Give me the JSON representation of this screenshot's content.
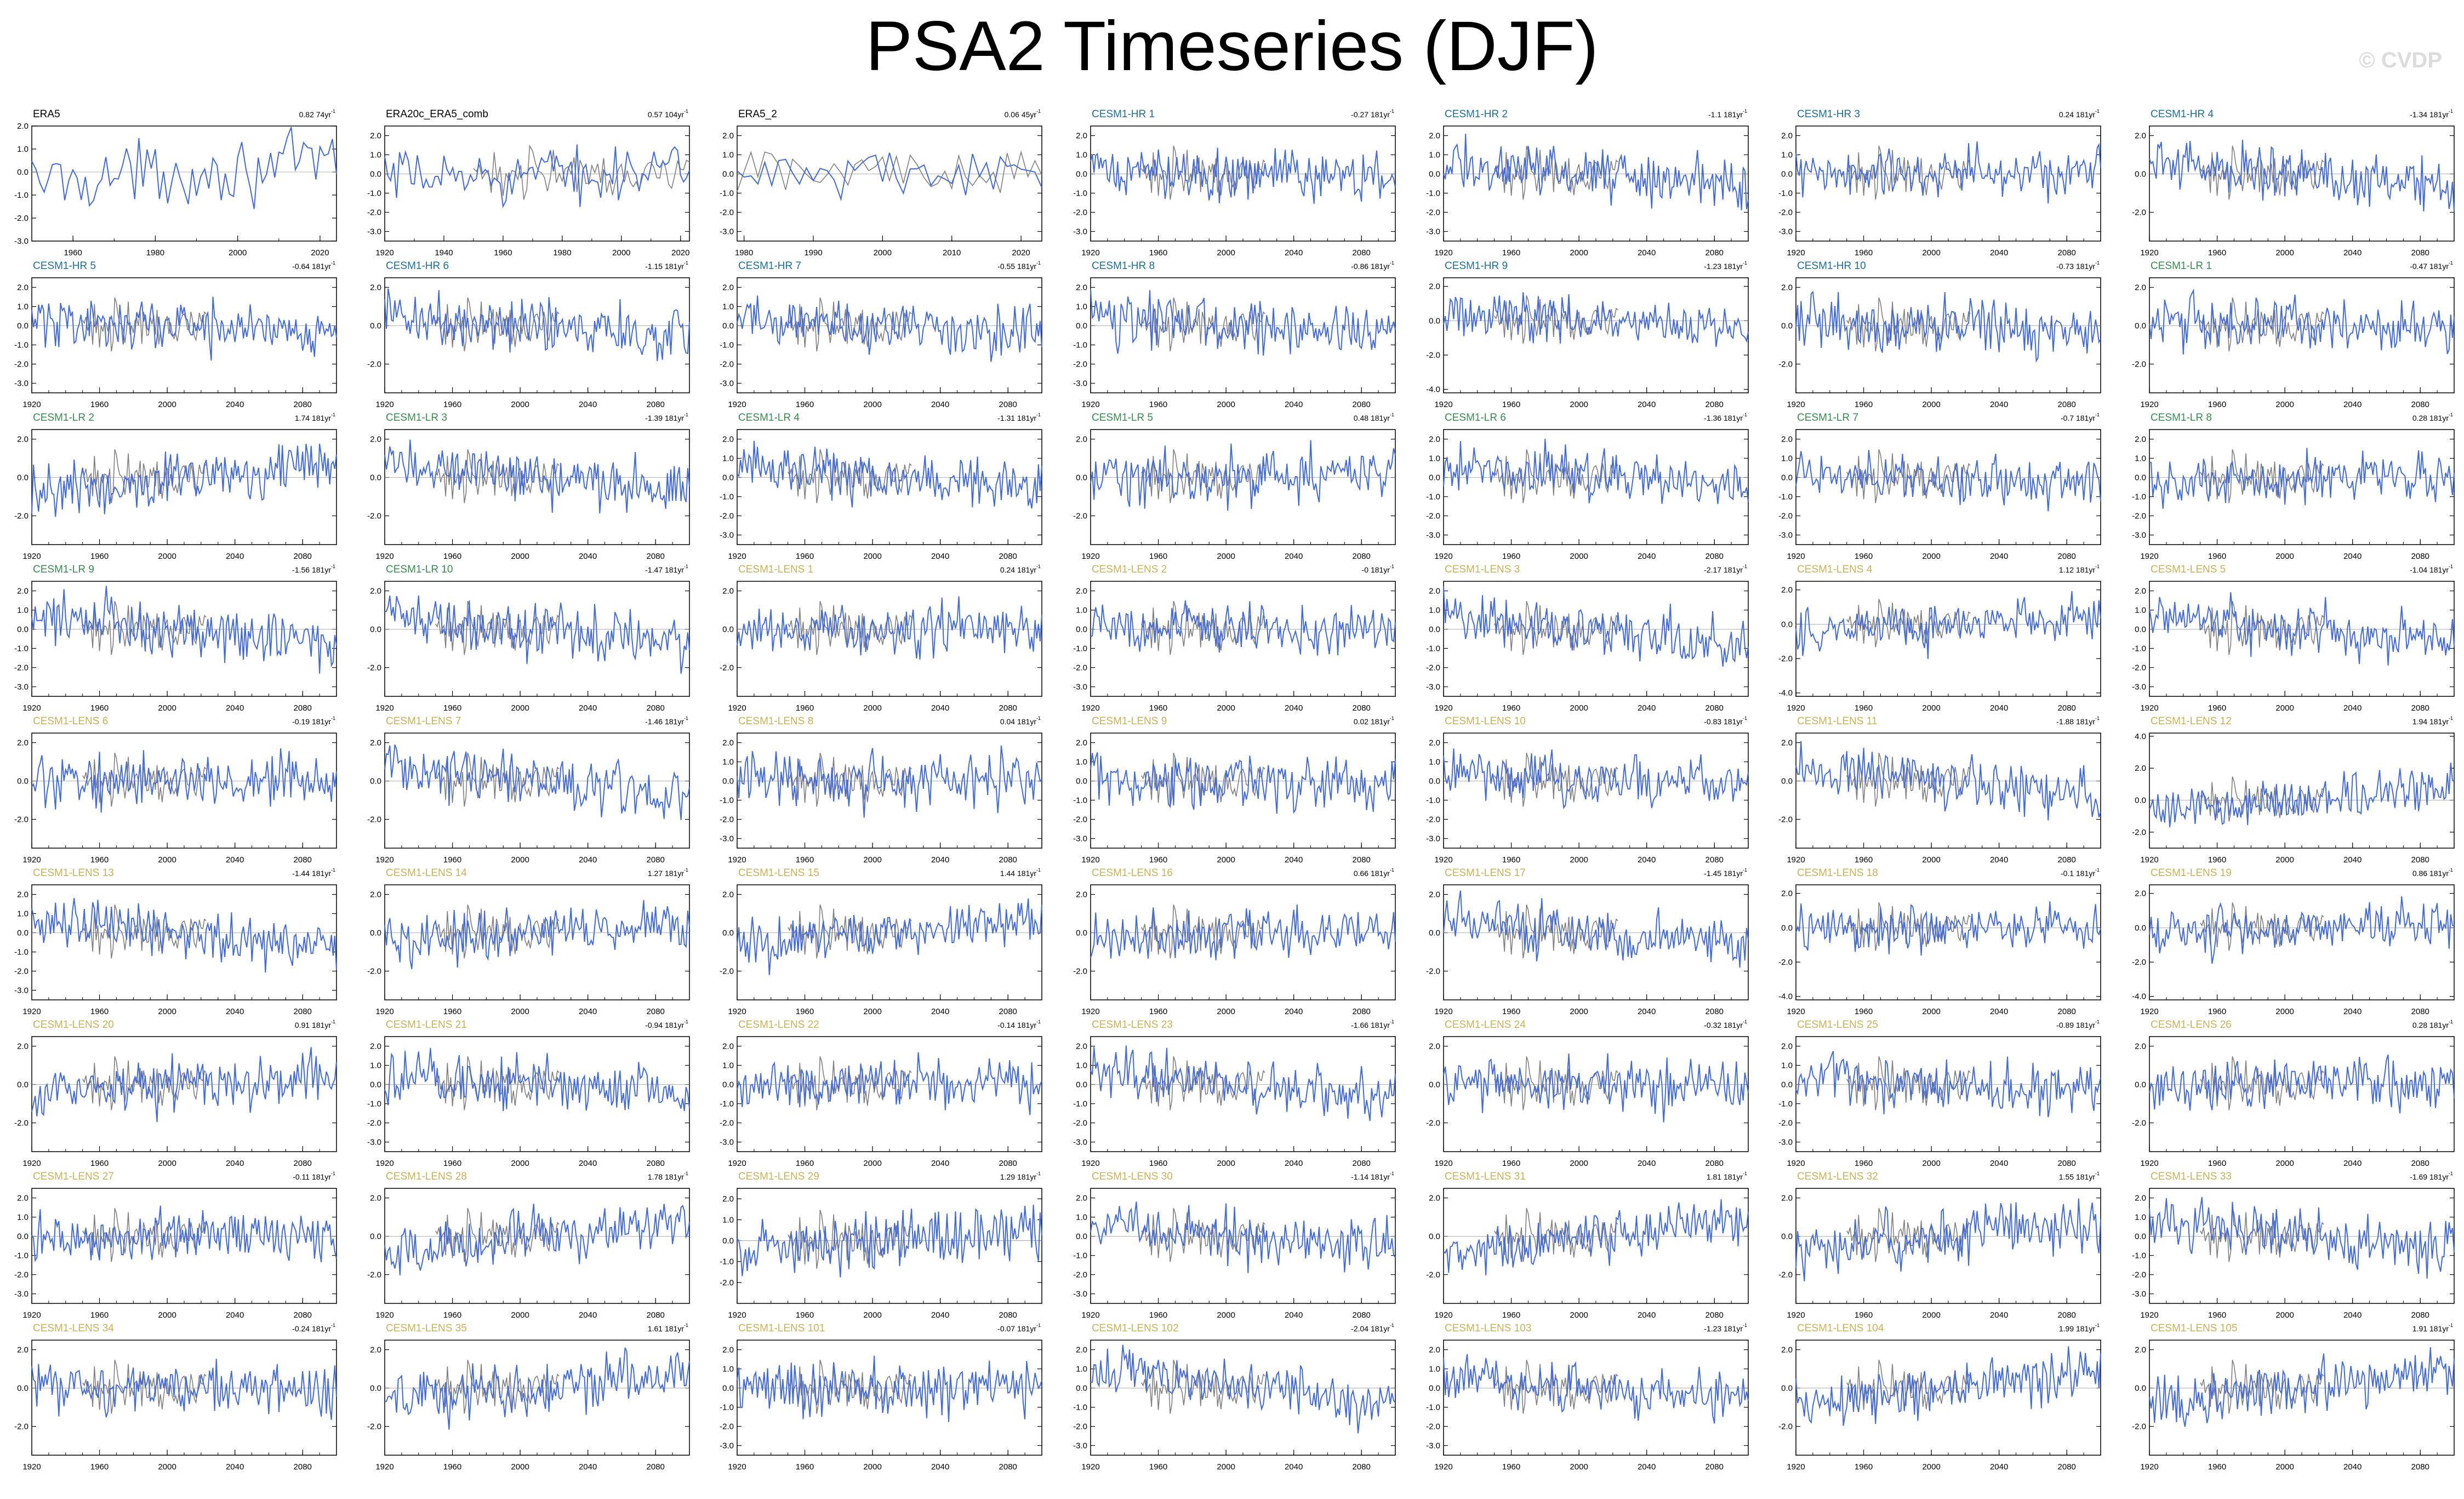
{
  "title": "PSA2 Timeseries (DJF)",
  "watermark": "© CVDP",
  "colors": {
    "obs_line": "#808080",
    "model_line": "#4169e1",
    "obs_label": "#000000",
    "hr_label": "#1f6f99",
    "lr_label": "#3a8a52",
    "lens_label": "#c8b25a"
  },
  "chart_data": {
    "type": "line",
    "panels": [
      {
        "name": "ERA5",
        "trend": "0.82",
        "unit": "74yr",
        "years": [
          1950,
          2024
        ],
        "xticks": [
          1960,
          1980,
          2000,
          2020
        ],
        "yticks": [
          "2.0",
          "1.0",
          "0.0",
          "-1.0",
          "-2.0",
          "-3.0"
        ],
        "ylim": [
          -3,
          2
        ],
        "group": "obs"
      },
      {
        "name": "ERA20c_ERA5_comb",
        "trend": "0.57",
        "unit": "104yr",
        "years": [
          1920,
          2023
        ],
        "xticks": [
          1920,
          1940,
          1960,
          1980,
          2000,
          2020
        ],
        "yticks": [
          "2.0",
          "1.0",
          "0.0",
          "-1.0",
          "-2.0",
          "-3.0"
        ],
        "ylim": [
          -3.5,
          2.5
        ],
        "group": "obs"
      },
      {
        "name": "ERA5_2",
        "trend": "0.06",
        "unit": "45yr",
        "years": [
          1979,
          2023
        ],
        "xticks": [
          1980,
          1990,
          2000,
          2010,
          2020
        ],
        "yticks": [
          "2.0",
          "1.0",
          "0.0",
          "-1.0",
          "-2.0",
          "-3.0"
        ],
        "ylim": [
          -3.5,
          2.5
        ],
        "group": "obs"
      },
      {
        "name": "CESM1-HR 1",
        "trend": "-0.27",
        "unit": "181yr",
        "group": "hr",
        "yticks": [
          "2.0",
          "1.0",
          "0.0",
          "-1.0",
          "-2.0",
          "-3.0"
        ],
        "ylim": [
          -3.5,
          2.5
        ]
      },
      {
        "name": "CESM1-HR 2",
        "trend": "-1.1",
        "unit": "181yr",
        "group": "hr",
        "yticks": [
          "2.0",
          "1.0",
          "0.0",
          "-1.0",
          "-2.0",
          "-3.0"
        ],
        "ylim": [
          -3.5,
          2.5
        ]
      },
      {
        "name": "CESM1-HR 3",
        "trend": "0.24",
        "unit": "181yr",
        "group": "hr",
        "yticks": [
          "2.0",
          "1.0",
          "0.0",
          "-1.0",
          "-2.0",
          "-3.0"
        ],
        "ylim": [
          -3.5,
          2.5
        ]
      },
      {
        "name": "CESM1-HR 4",
        "trend": "-1.34",
        "unit": "181yr",
        "group": "hr",
        "yticks": [
          "2.0",
          "0.0",
          "-2.0"
        ],
        "ylim": [
          -3.5,
          2.5
        ]
      },
      {
        "name": "CESM1-HR 5",
        "trend": "-0.64",
        "unit": "181yr",
        "group": "hr",
        "yticks": [
          "2.0",
          "1.0",
          "0.0",
          "-1.0",
          "-2.0",
          "-3.0"
        ],
        "ylim": [
          -3.5,
          2.5
        ]
      },
      {
        "name": "CESM1-HR 6",
        "trend": "-1.15",
        "unit": "181yr",
        "group": "hr",
        "yticks": [
          "2.0",
          "0.0",
          "-2.0"
        ],
        "ylim": [
          -3.5,
          2.5
        ]
      },
      {
        "name": "CESM1-HR 7",
        "trend": "-0.55",
        "unit": "181yr",
        "group": "hr",
        "yticks": [
          "2.0",
          "1.0",
          "0.0",
          "-1.0",
          "-2.0",
          "-3.0"
        ],
        "ylim": [
          -3.5,
          2.5
        ]
      },
      {
        "name": "CESM1-HR 8",
        "trend": "-0.86",
        "unit": "181yr",
        "group": "hr",
        "yticks": [
          "2.0",
          "1.0",
          "0.0",
          "-1.0",
          "-2.0",
          "-3.0"
        ],
        "ylim": [
          -3.5,
          2.5
        ]
      },
      {
        "name": "CESM1-HR 9",
        "trend": "-1.23",
        "unit": "181yr",
        "group": "hr",
        "yticks": [
          "2.0",
          "0.0",
          "-2.0",
          "-4.0"
        ],
        "ylim": [
          -4.2,
          2.5
        ]
      },
      {
        "name": "CESM1-HR 10",
        "trend": "-0.73",
        "unit": "181yr",
        "group": "hr",
        "yticks": [
          "2.0",
          "0.0",
          "-2.0"
        ],
        "ylim": [
          -3.5,
          2.5
        ]
      },
      {
        "name": "CESM1-LR 1",
        "trend": "-0.47",
        "unit": "181yr",
        "group": "lr",
        "yticks": [
          "2.0",
          "0.0",
          "-2.0"
        ],
        "ylim": [
          -3.5,
          2.5
        ]
      },
      {
        "name": "CESM1-LR 2",
        "trend": "1.74",
        "unit": "181yr",
        "group": "lr",
        "yticks": [
          "2.0",
          "0.0",
          "-2.0"
        ],
        "ylim": [
          -3.5,
          2.5
        ]
      },
      {
        "name": "CESM1-LR 3",
        "trend": "-1.39",
        "unit": "181yr",
        "group": "lr",
        "yticks": [
          "2.0",
          "0.0",
          "-2.0"
        ],
        "ylim": [
          -3.5,
          2.5
        ]
      },
      {
        "name": "CESM1-LR 4",
        "trend": "-1.31",
        "unit": "181yr",
        "group": "lr",
        "yticks": [
          "2.0",
          "1.0",
          "0.0",
          "-1.0",
          "-2.0",
          "-3.0"
        ],
        "ylim": [
          -3.5,
          2.5
        ]
      },
      {
        "name": "CESM1-LR 5",
        "trend": "0.48",
        "unit": "181yr",
        "group": "lr",
        "yticks": [
          "2.0",
          "0.0",
          "-2.0"
        ],
        "ylim": [
          -3.5,
          2.5
        ]
      },
      {
        "name": "CESM1-LR 6",
        "trend": "-1.36",
        "unit": "181yr",
        "group": "lr",
        "yticks": [
          "2.0",
          "1.0",
          "0.0",
          "-1.0",
          "-2.0",
          "-3.0"
        ],
        "ylim": [
          -3.5,
          2.5
        ]
      },
      {
        "name": "CESM1-LR 7",
        "trend": "-0.7",
        "unit": "181yr",
        "group": "lr",
        "yticks": [
          "2.0",
          "1.0",
          "0.0",
          "-1.0",
          "-2.0",
          "-3.0"
        ],
        "ylim": [
          -3.5,
          2.5
        ]
      },
      {
        "name": "CESM1-LR 8",
        "trend": "0.28",
        "unit": "181yr",
        "group": "lr",
        "yticks": [
          "2.0",
          "1.0",
          "0.0",
          "-1.0",
          "-2.0",
          "-3.0"
        ],
        "ylim": [
          -3.5,
          2.5
        ]
      },
      {
        "name": "CESM1-LR 9",
        "trend": "-1.56",
        "unit": "181yr",
        "group": "lr",
        "yticks": [
          "2.0",
          "1.0",
          "0.0",
          "-1.0",
          "-2.0",
          "-3.0"
        ],
        "ylim": [
          -3.5,
          2.5
        ]
      },
      {
        "name": "CESM1-LR 10",
        "trend": "-1.47",
        "unit": "181yr",
        "group": "lr",
        "yticks": [
          "2.0",
          "0.0",
          "-2.0"
        ],
        "ylim": [
          -3.5,
          2.5
        ]
      },
      {
        "name": "CESM1-LENS 1",
        "trend": "0.24",
        "unit": "181yr",
        "group": "lens",
        "yticks": [
          "2.0",
          "0.0",
          "-2.0"
        ],
        "ylim": [
          -3.5,
          2.5
        ]
      },
      {
        "name": "CESM1-LENS 2",
        "trend": "-0",
        "unit": "181yr",
        "group": "lens",
        "yticks": [
          "2.0",
          "1.0",
          "0.0",
          "-1.0",
          "-2.0",
          "-3.0"
        ],
        "ylim": [
          -3.5,
          2.5
        ]
      },
      {
        "name": "CESM1-LENS 3",
        "trend": "-2.17",
        "unit": "181yr",
        "group": "lens",
        "yticks": [
          "2.0",
          "1.0",
          "0.0",
          "-1.0",
          "-2.0",
          "-3.0"
        ],
        "ylim": [
          -3.5,
          2.5
        ]
      },
      {
        "name": "CESM1-LENS 4",
        "trend": "1.12",
        "unit": "181yr",
        "group": "lens",
        "yticks": [
          "2.0",
          "0.0",
          "-2.0",
          "-4.0"
        ],
        "ylim": [
          -4.2,
          2.5
        ]
      },
      {
        "name": "CESM1-LENS 5",
        "trend": "-1.04",
        "unit": "181yr",
        "group": "lens",
        "yticks": [
          "2.0",
          "1.0",
          "0.0",
          "-1.0",
          "-2.0",
          "-3.0"
        ],
        "ylim": [
          -3.5,
          2.5
        ]
      },
      {
        "name": "CESM1-LENS 6",
        "trend": "-0.19",
        "unit": "181yr",
        "group": "lens",
        "yticks": [
          "2.0",
          "0.0",
          "-2.0"
        ],
        "ylim": [
          -3.5,
          2.5
        ]
      },
      {
        "name": "CESM1-LENS 7",
        "trend": "-1.46",
        "unit": "181yr",
        "group": "lens",
        "yticks": [
          "2.0",
          "0.0",
          "-2.0"
        ],
        "ylim": [
          -3.5,
          2.5
        ]
      },
      {
        "name": "CESM1-LENS 8",
        "trend": "0.04",
        "unit": "181yr",
        "group": "lens",
        "yticks": [
          "2.0",
          "1.0",
          "0.0",
          "-1.0",
          "-2.0",
          "-3.0"
        ],
        "ylim": [
          -3.5,
          2.5
        ]
      },
      {
        "name": "CESM1-LENS 9",
        "trend": "0.02",
        "unit": "181yr",
        "group": "lens",
        "yticks": [
          "2.0",
          "1.0",
          "0.0",
          "-1.0",
          "-2.0",
          "-3.0"
        ],
        "ylim": [
          -3.5,
          2.5
        ]
      },
      {
        "name": "CESM1-LENS 10",
        "trend": "-0.83",
        "unit": "181yr",
        "group": "lens",
        "yticks": [
          "2.0",
          "1.0",
          "0.0",
          "-1.0",
          "-2.0",
          "-3.0"
        ],
        "ylim": [
          -3.5,
          2.5
        ]
      },
      {
        "name": "CESM1-LENS 11",
        "trend": "-1.88",
        "unit": "181yr",
        "group": "lens",
        "yticks": [
          "2.0",
          "0.0",
          "-2.0"
        ],
        "ylim": [
          -3.5,
          2.5
        ]
      },
      {
        "name": "CESM1-LENS 12",
        "trend": "1.94",
        "unit": "181yr",
        "group": "lens",
        "yticks": [
          "4.0",
          "2.0",
          "0.0",
          "-2.0"
        ],
        "ylim": [
          -3,
          4.2
        ]
      },
      {
        "name": "CESM1-LENS 13",
        "trend": "-1.44",
        "unit": "181yr",
        "group": "lens",
        "yticks": [
          "2.0",
          "1.0",
          "0.0",
          "-1.0",
          "-2.0",
          "-3.0"
        ],
        "ylim": [
          -3.5,
          2.5
        ]
      },
      {
        "name": "CESM1-LENS 14",
        "trend": "1.27",
        "unit": "181yr",
        "group": "lens",
        "yticks": [
          "2.0",
          "0.0",
          "-2.0"
        ],
        "ylim": [
          -3.5,
          2.5
        ]
      },
      {
        "name": "CESM1-LENS 15",
        "trend": "1.44",
        "unit": "181yr",
        "group": "lens",
        "yticks": [
          "2.0",
          "0.0",
          "-2.0"
        ],
        "ylim": [
          -3.5,
          2.5
        ]
      },
      {
        "name": "CESM1-LENS 16",
        "trend": "0.66",
        "unit": "181yr",
        "group": "lens",
        "yticks": [
          "2.0",
          "0.0",
          "-2.0"
        ],
        "ylim": [
          -3.5,
          2.5
        ]
      },
      {
        "name": "CESM1-LENS 17",
        "trend": "-1.45",
        "unit": "181yr",
        "group": "lens",
        "yticks": [
          "2.0",
          "0.0",
          "-2.0"
        ],
        "ylim": [
          -3.5,
          2.5
        ]
      },
      {
        "name": "CESM1-LENS 18",
        "trend": "-0.1",
        "unit": "181yr",
        "group": "lens",
        "yticks": [
          "2.0",
          "0.0",
          "-2.0",
          "-4.0"
        ],
        "ylim": [
          -4.2,
          2.5
        ]
      },
      {
        "name": "CESM1-LENS 19",
        "trend": "0.86",
        "unit": "181yr",
        "group": "lens",
        "yticks": [
          "2.0",
          "0.0",
          "-2.0",
          "-4.0"
        ],
        "ylim": [
          -4.2,
          2.5
        ]
      },
      {
        "name": "CESM1-LENS 20",
        "trend": "0.91",
        "unit": "181yr",
        "group": "lens",
        "yticks": [
          "2.0",
          "0.0",
          "-2.0"
        ],
        "ylim": [
          -3.5,
          2.5
        ]
      },
      {
        "name": "CESM1-LENS 21",
        "trend": "-0.94",
        "unit": "181yr",
        "group": "lens",
        "yticks": [
          "2.0",
          "1.0",
          "0.0",
          "-1.0",
          "-2.0",
          "-3.0"
        ],
        "ylim": [
          -3.5,
          2.5
        ]
      },
      {
        "name": "CESM1-LENS 22",
        "trend": "-0.14",
        "unit": "181yr",
        "group": "lens",
        "yticks": [
          "2.0",
          "1.0",
          "0.0",
          "-1.0",
          "-2.0",
          "-3.0"
        ],
        "ylim": [
          -3.5,
          2.5
        ]
      },
      {
        "name": "CESM1-LENS 23",
        "trend": "-1.66",
        "unit": "181yr",
        "group": "lens",
        "yticks": [
          "2.0",
          "1.0",
          "0.0",
          "-1.0",
          "-2.0",
          "-3.0"
        ],
        "ylim": [
          -3.5,
          2.5
        ]
      },
      {
        "name": "CESM1-LENS 24",
        "trend": "-0.32",
        "unit": "181yr",
        "group": "lens",
        "yticks": [
          "2.0",
          "0.0",
          "-2.0"
        ],
        "ylim": [
          -3.5,
          2.5
        ]
      },
      {
        "name": "CESM1-LENS 25",
        "trend": "-0.89",
        "unit": "181yr",
        "group": "lens",
        "yticks": [
          "2.0",
          "1.0",
          "0.0",
          "-1.0",
          "-2.0",
          "-3.0"
        ],
        "ylim": [
          -3.5,
          2.5
        ]
      },
      {
        "name": "CESM1-LENS 26",
        "trend": "0.28",
        "unit": "181yr",
        "group": "lens",
        "yticks": [
          "2.0",
          "0.0",
          "-2.0"
        ],
        "ylim": [
          -3.5,
          2.5
        ]
      },
      {
        "name": "CESM1-LENS 27",
        "trend": "-0.11",
        "unit": "181yr",
        "group": "lens",
        "yticks": [
          "2.0",
          "1.0",
          "0.0",
          "-1.0",
          "-2.0",
          "-3.0"
        ],
        "ylim": [
          -3.5,
          2.5
        ]
      },
      {
        "name": "CESM1-LENS 28",
        "trend": "1.78",
        "unit": "181yr",
        "group": "lens",
        "yticks": [
          "2.0",
          "0.0",
          "-2.0"
        ],
        "ylim": [
          -3.5,
          2.5
        ]
      },
      {
        "name": "CESM1-LENS 29",
        "trend": "1.29",
        "unit": "181yr",
        "group": "lens",
        "yticks": [
          "2.0",
          "1.0",
          "0.0",
          "-1.0",
          "-2.0"
        ],
        "ylim": [
          -3,
          2.5
        ]
      },
      {
        "name": "CESM1-LENS 30",
        "trend": "-1.14",
        "unit": "181yr",
        "group": "lens",
        "yticks": [
          "2.0",
          "1.0",
          "0.0",
          "-1.0",
          "-2.0",
          "-3.0"
        ],
        "ylim": [
          -3.5,
          2.5
        ]
      },
      {
        "name": "CESM1-LENS 31",
        "trend": "1.81",
        "unit": "181yr",
        "group": "lens",
        "yticks": [
          "2.0",
          "0.0",
          "-2.0"
        ],
        "ylim": [
          -3.5,
          2.5
        ]
      },
      {
        "name": "CESM1-LENS 32",
        "trend": "1.55",
        "unit": "181yr",
        "group": "lens",
        "yticks": [
          "2.0",
          "0.0",
          "-2.0"
        ],
        "ylim": [
          -3.5,
          2.5
        ]
      },
      {
        "name": "CESM1-LENS 33",
        "trend": "-1.69",
        "unit": "181yr",
        "group": "lens",
        "yticks": [
          "2.0",
          "1.0",
          "0.0",
          "-1.0",
          "-2.0",
          "-3.0"
        ],
        "ylim": [
          -3.5,
          2.5
        ]
      },
      {
        "name": "CESM1-LENS 34",
        "trend": "-0.24",
        "unit": "181yr",
        "group": "lens",
        "yticks": [
          "2.0",
          "0.0",
          "-2.0"
        ],
        "ylim": [
          -3.5,
          2.5
        ]
      },
      {
        "name": "CESM1-LENS 35",
        "trend": "1.61",
        "unit": "181yr",
        "group": "lens",
        "yticks": [
          "2.0",
          "0.0",
          "-2.0"
        ],
        "ylim": [
          -3.5,
          2.5
        ]
      },
      {
        "name": "CESM1-LENS 101",
        "trend": "-0.07",
        "unit": "181yr",
        "group": "lens",
        "yticks": [
          "2.0",
          "1.0",
          "0.0",
          "-1.0",
          "-2.0",
          "-3.0"
        ],
        "ylim": [
          -3.5,
          2.5
        ]
      },
      {
        "name": "CESM1-LENS 102",
        "trend": "-2.04",
        "unit": "181yr",
        "group": "lens",
        "yticks": [
          "2.0",
          "1.0",
          "0.0",
          "-1.0",
          "-2.0",
          "-3.0"
        ],
        "ylim": [
          -3.5,
          2.5
        ]
      },
      {
        "name": "CESM1-LENS 103",
        "trend": "-1.23",
        "unit": "181yr",
        "group": "lens",
        "yticks": [
          "2.0",
          "1.0",
          "0.0",
          "-1.0",
          "-2.0",
          "-3.0"
        ],
        "ylim": [
          -3.5,
          2.5
        ]
      },
      {
        "name": "CESM1-LENS 104",
        "trend": "1.99",
        "unit": "181yr",
        "group": "lens",
        "yticks": [
          "2.0",
          "0.0",
          "-2.0"
        ],
        "ylim": [
          -3.5,
          2.5
        ]
      },
      {
        "name": "CESM1-LENS 105",
        "trend": "1.91",
        "unit": "181yr",
        "group": "lens",
        "yticks": [
          "2.0",
          "0.0",
          "-2.0"
        ],
        "ylim": [
          -3.5,
          2.5
        ]
      }
    ],
    "model_years": [
      1920,
      2100
    ],
    "model_xticks": [
      1920,
      1960,
      2000,
      2040,
      2080
    ],
    "zero_line": 0
  }
}
